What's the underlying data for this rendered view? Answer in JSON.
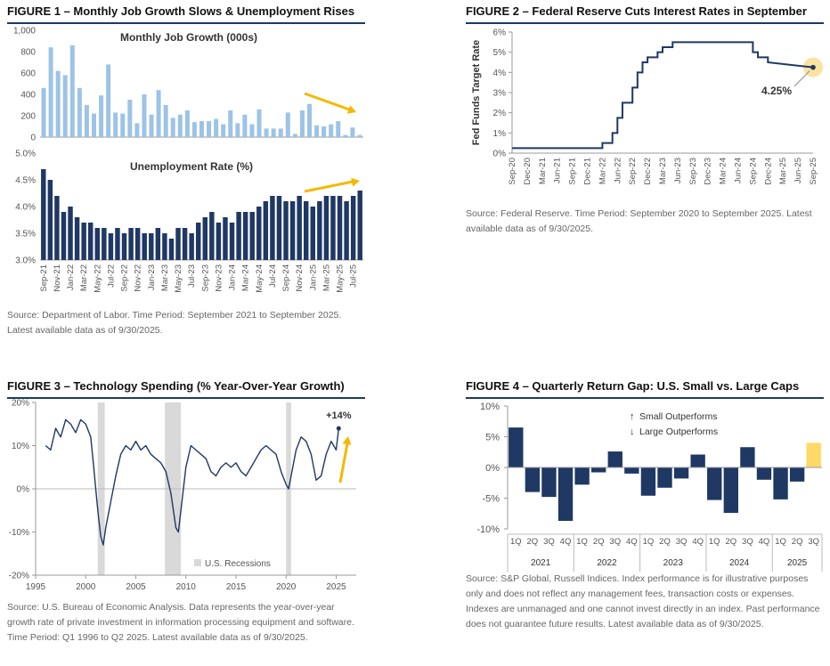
{
  "fig1": {
    "title": "FIGURE 1 – Monthly Job Growth Slows & Unemployment Rises",
    "source": "Source: Department of Labor. Time Period: September 2021 to September 2025. Latest available data as of 9/30/2025.",
    "chart_data": [
      {
        "type": "bar",
        "title": "Monthly Job Growth (000s)",
        "ylim": [
          0,
          1000
        ],
        "yticks": [
          "0",
          "200",
          "400",
          "600",
          "800",
          "1,000"
        ],
        "ytick_values": [
          0,
          200,
          400,
          600,
          800,
          1000
        ],
        "color": "#9dc3e6",
        "values": [
          460,
          840,
          620,
          580,
          860,
          460,
          300,
          220,
          390,
          680,
          230,
          220,
          350,
          130,
          400,
          210,
          440,
          300,
          180,
          210,
          250,
          140,
          150,
          150,
          170,
          120,
          250,
          130,
          210,
          120,
          260,
          80,
          80,
          80,
          230,
          30,
          250,
          310,
          110,
          100,
          120,
          150,
          20,
          90,
          20
        ]
      },
      {
        "type": "bar",
        "title": "Unemployment Rate (%)",
        "ylim": [
          3.0,
          5.0
        ],
        "yticks": [
          "3.0%",
          "3.5%",
          "4.0%",
          "4.5%",
          "5.0%"
        ],
        "ytick_values": [
          3.0,
          3.5,
          4.0,
          4.5,
          5.0
        ],
        "color": "#1f3864",
        "categories": [
          "Sep-21",
          "Oct-21",
          "Nov-21",
          "Dec-21",
          "Jan-22",
          "Feb-22",
          "Mar-22",
          "Apr-22",
          "May-22",
          "Jun-22",
          "Jul-22",
          "Aug-22",
          "Sep-22",
          "Oct-22",
          "Nov-22",
          "Dec-22",
          "Jan-23",
          "Feb-23",
          "Mar-23",
          "Apr-23",
          "May-23",
          "Jun-23",
          "Jul-23",
          "Aug-23",
          "Sep-23",
          "Oct-23",
          "Nov-23",
          "Dec-23",
          "Jan-24",
          "Feb-24",
          "Mar-24",
          "Apr-24",
          "May-24",
          "Jun-24",
          "Jul-24",
          "Aug-24",
          "Sep-24",
          "Oct-24",
          "Nov-24",
          "Dec-24",
          "Jan-25",
          "Feb-25",
          "Mar-25",
          "Apr-25",
          "May-25",
          "Jun-25",
          "Jul-25",
          "Aug-25"
        ],
        "xtick_labels": [
          "Sep-21",
          "Nov-21",
          "Jan-22",
          "Mar-22",
          "May-22",
          "Jul-22",
          "Sep-22",
          "Nov-22",
          "Jan-23",
          "Mar-23",
          "May-23",
          "Jul-23",
          "Sep-23",
          "Nov-23",
          "Jan-24",
          "Mar-24",
          "May-24",
          "Jul-24",
          "Sep-24",
          "Nov-24",
          "Jan-25",
          "Mar-25",
          "May-25",
          "Jul-25"
        ],
        "values": [
          4.7,
          4.5,
          4.2,
          3.9,
          4.0,
          3.8,
          3.7,
          3.7,
          3.6,
          3.6,
          3.5,
          3.6,
          3.5,
          3.6,
          3.6,
          3.5,
          3.5,
          3.6,
          3.5,
          3.4,
          3.6,
          3.6,
          3.5,
          3.7,
          3.8,
          3.9,
          3.7,
          3.8,
          3.7,
          3.9,
          3.9,
          3.9,
          4.0,
          4.1,
          4.2,
          4.2,
          4.1,
          4.1,
          4.2,
          4.1,
          4.0,
          4.1,
          4.2,
          4.2,
          4.2,
          4.1,
          4.2,
          4.3
        ]
      }
    ]
  },
  "fig2": {
    "title": "FIGURE 2 – Federal Reserve Cuts Interest Rates in September",
    "source": "Source: Federal Reserve. Time Period: September 2020 to September 2025. Latest available data as of 9/30/2025.",
    "chart_data": {
      "type": "line",
      "ylabel": "Fed Funds Target Rate",
      "ylim": [
        0,
        6
      ],
      "yticks": [
        "0%",
        "1%",
        "2%",
        "3%",
        "4%",
        "5%",
        "6%"
      ],
      "ytick_values": [
        0,
        1,
        2,
        3,
        4,
        5,
        6
      ],
      "xlim": [
        0,
        60
      ],
      "xtick_labels": [
        "Sep-20",
        "Dec-20",
        "Mar-21",
        "Jun-21",
        "Sep-21",
        "Dec-21",
        "Mar-22",
        "Jun-22",
        "Sep-22",
        "Dec-22",
        "Mar-23",
        "Jun-23",
        "Sep-23",
        "Dec-23",
        "Mar-24",
        "Jun-24",
        "Sep-24",
        "Dec-24",
        "Mar-25",
        "Jun-25",
        "Sep-25"
      ],
      "xtick_values": [
        0,
        3,
        6,
        9,
        12,
        15,
        18,
        21,
        24,
        27,
        30,
        33,
        36,
        39,
        42,
        45,
        48,
        51,
        54,
        57,
        60
      ],
      "x": [
        0,
        18,
        18,
        20,
        20,
        21,
        21,
        22,
        22,
        24,
        24,
        25,
        25,
        26,
        26,
        27,
        27,
        29,
        29,
        30,
        30,
        32,
        32,
        34,
        34,
        48,
        48,
        49,
        49,
        51,
        51,
        60
      ],
      "values": [
        0.25,
        0.25,
        0.5,
        0.5,
        1.0,
        1.0,
        1.75,
        1.75,
        2.5,
        2.5,
        3.25,
        3.25,
        4.0,
        4.0,
        4.5,
        4.5,
        4.75,
        4.75,
        5.0,
        5.0,
        5.25,
        5.25,
        5.5,
        5.5,
        5.5,
        5.5,
        5.0,
        5.0,
        4.75,
        4.75,
        4.5,
        4.25
      ],
      "annotation": "4.25%",
      "color": "#1f3864",
      "highlight_color": "#fbe3a0"
    }
  },
  "fig3": {
    "title": "FIGURE 3 – Technology Spending (% Year-Over-Year Growth)",
    "source": "Source: U.S. Bureau of Economic Analysis. Data represents the year-over-year growth rate of private investment in information processing equipment and software. Time Period: Q1 1996 to Q2 2025. Latest available data as of 9/30/2025.",
    "chart_data": {
      "type": "line",
      "ylim": [
        -20,
        20
      ],
      "yticks": [
        "-20%",
        "-10%",
        "0%",
        "10%",
        "20%"
      ],
      "ytick_values": [
        -20,
        -10,
        0,
        10,
        20
      ],
      "xlim": [
        1995,
        2027
      ],
      "xtick_labels": [
        "1995",
        "2000",
        "2005",
        "2010",
        "2015",
        "2020",
        "2025"
      ],
      "xtick_values": [
        1995,
        2000,
        2005,
        2010,
        2015,
        2020,
        2025
      ],
      "recessions": [
        [
          2001.2,
          2001.9
        ],
        [
          2007.9,
          2009.5
        ],
        [
          2020.0,
          2020.5
        ]
      ],
      "legend": "U.S. Recessions",
      "annotation": "+14%",
      "color": "#1f3864",
      "x": [
        1996.0,
        1996.5,
        1997.0,
        1997.5,
        1998.0,
        1998.5,
        1999.0,
        1999.5,
        2000.0,
        2000.5,
        2000.8,
        2001.0,
        2001.25,
        2001.5,
        2001.75,
        2002.0,
        2002.5,
        2003.0,
        2003.5,
        2004.0,
        2004.5,
        2005.0,
        2005.5,
        2006.0,
        2006.5,
        2007.0,
        2007.5,
        2008.0,
        2008.5,
        2008.75,
        2009.0,
        2009.25,
        2009.5,
        2010.0,
        2010.5,
        2011.0,
        2011.5,
        2012.0,
        2012.5,
        2013.0,
        2013.5,
        2014.0,
        2014.5,
        2015.0,
        2015.5,
        2016.0,
        2016.5,
        2017.0,
        2017.5,
        2018.0,
        2018.5,
        2019.0,
        2019.5,
        2020.0,
        2020.25,
        2020.5,
        2021.0,
        2021.5,
        2022.0,
        2022.5,
        2023.0,
        2023.5,
        2024.0,
        2024.5,
        2025.0,
        2025.25
      ],
      "values": [
        10,
        9,
        14,
        12,
        16,
        15,
        13,
        16,
        15,
        12,
        5,
        0,
        -6,
        -11,
        -13,
        -9,
        -3,
        3,
        8,
        10,
        9,
        11,
        9,
        10,
        8,
        7,
        6,
        4,
        -1,
        -5,
        -9,
        -10,
        -5,
        5,
        10,
        9,
        8,
        7,
        4,
        3,
        5,
        6,
        5,
        6,
        4,
        3,
        5,
        7,
        9,
        10,
        9,
        8,
        4,
        1,
        0,
        3,
        9,
        12,
        11,
        8,
        2,
        3,
        8,
        11,
        9,
        14
      ]
    }
  },
  "fig4": {
    "title": "FIGURE 4 – Quarterly Return Gap:  U.S. Small vs. Large Caps",
    "source": "Source: S&P Global, Russell Indices. Index performance is for illustrative purposes only and does not reflect any management fees, transaction costs or expenses. Indexes are unmanaged and one cannot invest directly in an index. Past performance does not guarantee future results. Latest available data as of 9/30/2025.",
    "chart_data": {
      "type": "bar",
      "ylim": [
        -10,
        10
      ],
      "yticks": [
        "-10%",
        "-5%",
        "0%",
        "5%",
        "10%"
      ],
      "ytick_values": [
        -10,
        -5,
        0,
        5,
        10
      ],
      "quarters": [
        "1Q",
        "2Q",
        "3Q",
        "4Q",
        "1Q",
        "2Q",
        "3Q",
        "4Q",
        "1Q",
        "2Q",
        "3Q",
        "4Q",
        "1Q",
        "2Q",
        "3Q",
        "4Q",
        "1Q",
        "2Q",
        "3Q"
      ],
      "years": [
        "2021",
        "2022",
        "2023",
        "2024",
        "2025"
      ],
      "values": [
        6.5,
        -4.0,
        -4.8,
        -8.7,
        -2.8,
        -0.8,
        2.6,
        -1.0,
        -4.6,
        -3.3,
        -1.8,
        2.1,
        -5.3,
        -7.4,
        3.3,
        -2.0,
        -5.2,
        -2.3,
        4.0
      ],
      "highlight_index": 18,
      "legend_up": "Small Outperforms",
      "legend_down": "Large Outperforms",
      "color": "#1f3864",
      "highlight_color": "#ffd966"
    }
  }
}
